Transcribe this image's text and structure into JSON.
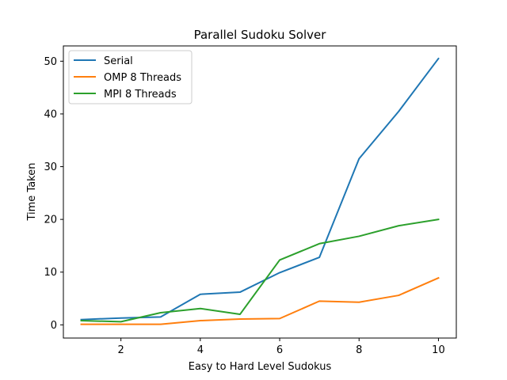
{
  "chart_data": {
    "type": "line",
    "title": "Parallel Sudoku Solver",
    "xlabel": "Easy to Hard Level Sudokus",
    "ylabel": "Time Taken",
    "x": [
      1,
      2,
      3,
      4,
      5,
      6,
      7,
      8,
      9,
      10
    ],
    "xlim": [
      0.55,
      10.45
    ],
    "ylim": [
      -2.5,
      52.9
    ],
    "xticks": [
      2,
      4,
      6,
      8,
      10
    ],
    "yticks": [
      0,
      10,
      20,
      30,
      40,
      50
    ],
    "grid": false,
    "legend": "top-left",
    "series": [
      {
        "name": "Serial",
        "color": "#1f77b4",
        "values": [
          1.0,
          1.3,
          1.5,
          5.8,
          6.2,
          9.9,
          12.8,
          31.5,
          40.5,
          50.5
        ]
      },
      {
        "name": "OMP 8 Threads",
        "color": "#ff7f0e",
        "values": [
          0.1,
          0.1,
          0.1,
          0.8,
          1.1,
          1.2,
          4.5,
          4.3,
          5.6,
          8.9
        ]
      },
      {
        "name": "MPI 8 Threads",
        "color": "#2ca02c",
        "values": [
          0.8,
          0.6,
          2.3,
          3.1,
          2.0,
          12.3,
          15.4,
          16.8,
          18.8,
          20.0
        ]
      }
    ]
  }
}
